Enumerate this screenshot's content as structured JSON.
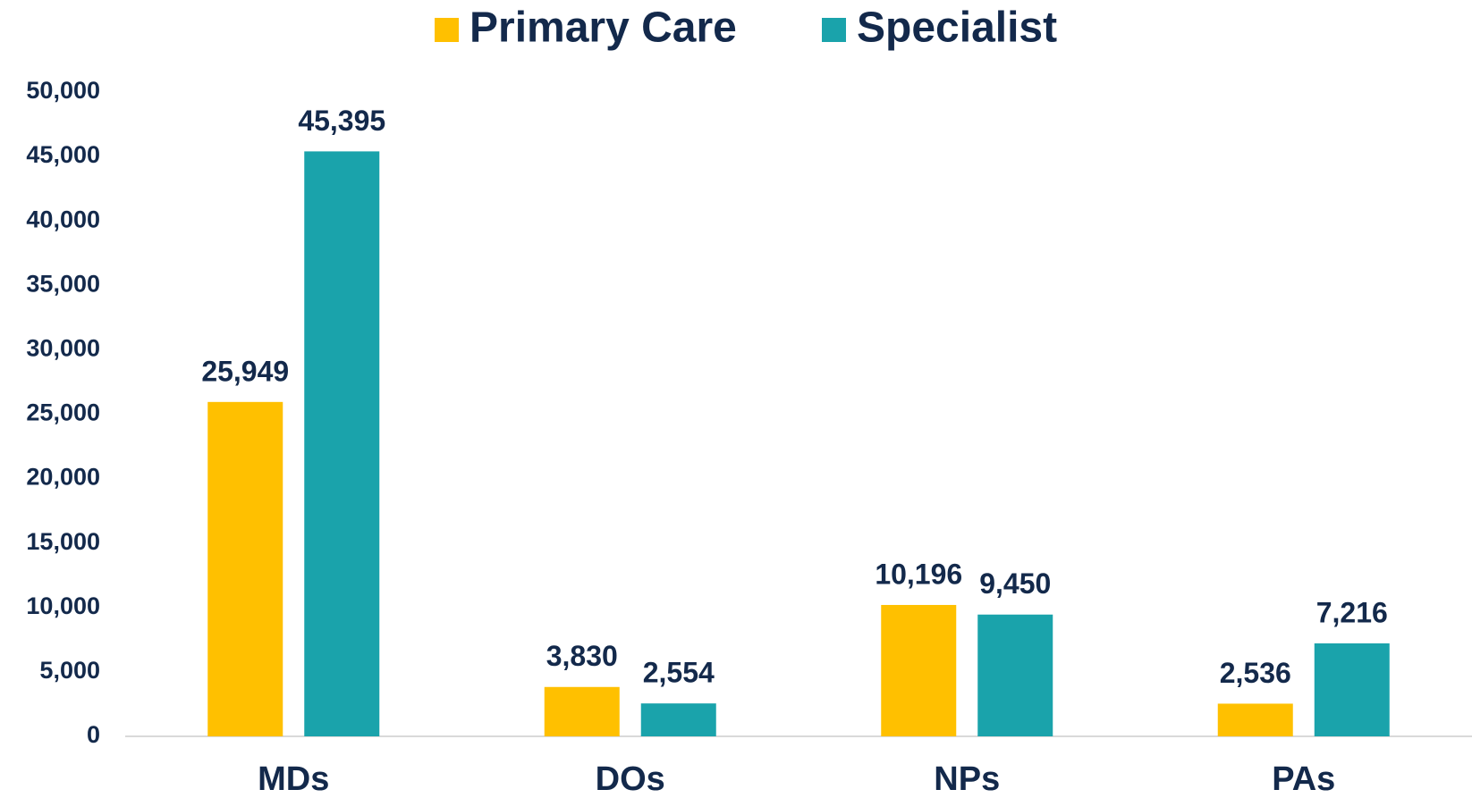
{
  "chart_data": {
    "type": "bar",
    "categories": [
      "MDs",
      "DOs",
      "NPs",
      "PAs"
    ],
    "series": [
      {
        "name": "Primary Care",
        "color": "#ffc000",
        "values": [
          25949,
          3830,
          10196,
          2536
        ],
        "value_labels": [
          "25,949",
          "3,830",
          "10,196",
          "2,536"
        ]
      },
      {
        "name": "Specialist",
        "color": "#1aa3ab",
        "values": [
          45395,
          2554,
          9450,
          7216
        ],
        "value_labels": [
          "45,395",
          "2,554",
          "9,450",
          "7,216"
        ]
      }
    ],
    "ylim": [
      0,
      50000
    ],
    "yticks": [
      0,
      {
        "value": 5000,
        "label": "5,000"
      },
      {
        "value": 10000,
        "label": "10,000"
      },
      {
        "value": 15000,
        "label": "15,000"
      },
      {
        "value": 20000,
        "label": "20,000"
      },
      {
        "value": 25000,
        "label": "25,000"
      },
      {
        "value": 30000,
        "label": "30,000"
      },
      {
        "value": 35000,
        "label": "35,000"
      },
      {
        "value": 40000,
        "label": "40,000"
      },
      {
        "value": 45000,
        "label": "45,000"
      },
      {
        "value": 50000,
        "label": "50,000"
      }
    ],
    "grid": false,
    "legend": "top"
  }
}
